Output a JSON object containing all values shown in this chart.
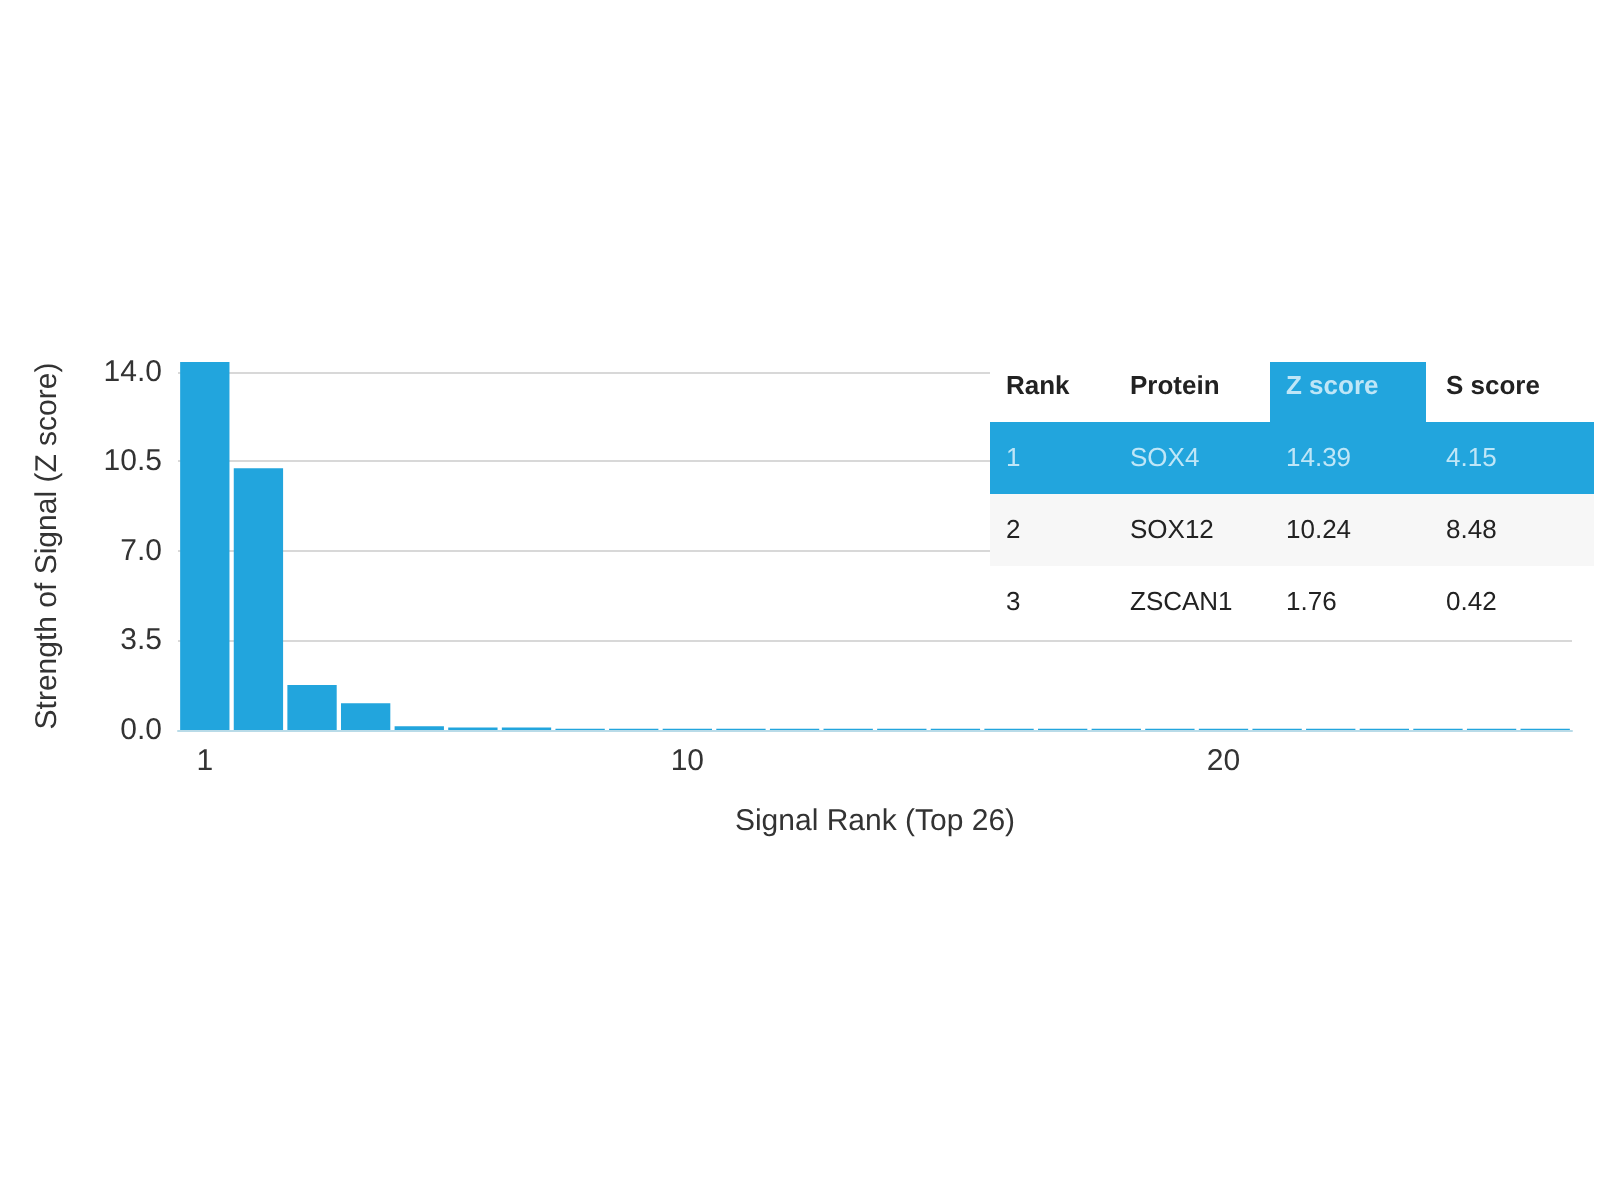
{
  "chart_data": {
    "type": "bar",
    "xlabel": "Signal Rank (Top 26)",
    "ylabel": "Strength of Signal (Z score)",
    "categories": [
      "1",
      null,
      null,
      null,
      null,
      null,
      null,
      null,
      null,
      "10",
      null,
      null,
      null,
      null,
      null,
      null,
      null,
      null,
      null,
      "20",
      null,
      null,
      null,
      null,
      null,
      null
    ],
    "values": [
      14.39,
      10.24,
      1.76,
      1.05,
      0.15,
      0.1,
      0.1,
      0.05,
      0.05,
      0.05,
      0.05,
      0.05,
      0.05,
      0.05,
      0.05,
      0.05,
      0.05,
      0.05,
      0.05,
      0.05,
      0.05,
      0.05,
      0.05,
      0.05,
      0.05,
      0.05
    ],
    "color": "#22a5dd",
    "ylim": [
      0,
      14.39
    ],
    "yticks": [
      {
        "value": 0,
        "label": "0.0"
      },
      3.5,
      {
        "value": 7,
        "label": "7.0"
      },
      10.5,
      {
        "value": 14,
        "label": "14.0"
      }
    ],
    "grid": "y",
    "annotations": [
      "Rank",
      "Protein",
      "Z score",
      "S score",
      "1",
      "SOX4",
      "14.39",
      "4.15",
      "2",
      "SOX12",
      "10.24",
      "8.48",
      "3",
      "ZSCAN1",
      "1.76",
      "0.42"
    ]
  }
}
